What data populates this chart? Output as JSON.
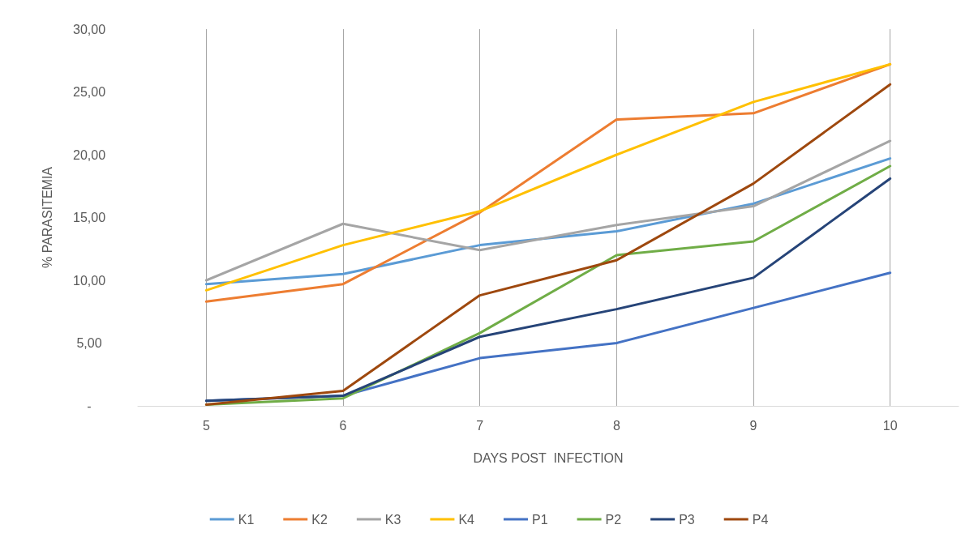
{
  "chart_data": {
    "type": "line",
    "xlabel": "DAYS POST  INFECTION",
    "ylabel": "% PARASITEMIA",
    "x": [
      5,
      6,
      7,
      8,
      9,
      10
    ],
    "xlim": [
      4.5,
      10.5
    ],
    "xticks": [
      5,
      6,
      7,
      8,
      9,
      10
    ],
    "ylim": [
      0,
      30
    ],
    "yticks": [
      {
        "value": 0,
        "label": "-"
      },
      {
        "value": 5,
        "label": "5,00"
      },
      {
        "value": 10,
        "label": "10,00"
      },
      {
        "value": 15,
        "label": "15,00"
      },
      {
        "value": 20,
        "label": "20,00"
      },
      {
        "value": 25,
        "label": "25,00"
      },
      {
        "value": 30,
        "label": "30,00"
      }
    ],
    "grid": "x",
    "legend": "bottom",
    "marker": "none",
    "line_style": "solid",
    "series": [
      {
        "name": "K1",
        "color": "#5b9bd5",
        "values": [
          9.7,
          10.5,
          12.8,
          13.9,
          16.1,
          19.7
        ]
      },
      {
        "name": "K2",
        "color": "#ed7d31",
        "values": [
          8.3,
          9.7,
          15.4,
          22.8,
          23.3,
          27.2
        ]
      },
      {
        "name": "K3",
        "color": "#a5a5a5",
        "values": [
          10.0,
          14.5,
          12.4,
          14.4,
          15.9,
          21.1
        ]
      },
      {
        "name": "K4",
        "color": "#ffc000",
        "values": [
          9.2,
          12.8,
          15.5,
          20.0,
          24.2,
          27.2
        ]
      },
      {
        "name": "P1",
        "color": "#4472c4",
        "values": [
          0.4,
          0.8,
          3.8,
          5.0,
          7.8,
          10.6
        ]
      },
      {
        "name": "P2",
        "color": "#70ad47",
        "values": [
          0.1,
          0.6,
          5.8,
          12.0,
          13.1,
          19.1
        ]
      },
      {
        "name": "P3",
        "color": "#264478",
        "values": [
          0.4,
          0.8,
          5.5,
          7.7,
          10.2,
          18.1
        ]
      },
      {
        "name": "P4",
        "color": "#9e480e",
        "values": [
          0.1,
          1.2,
          8.8,
          11.6,
          17.7,
          25.6
        ]
      }
    ]
  }
}
